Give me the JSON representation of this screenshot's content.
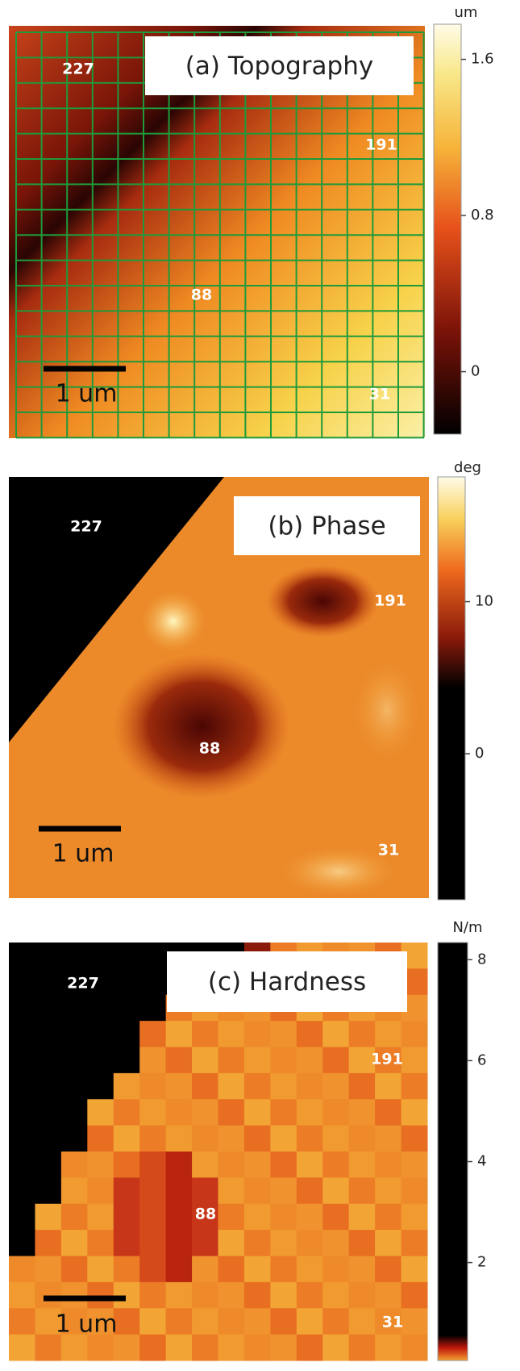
{
  "panels": [
    {
      "title": "(a) Topography",
      "unit": "um",
      "colorbar": {
        "ylim": [
          -0.32,
          1.78
        ],
        "yticks": [
          0,
          0.8,
          1.6
        ]
      },
      "labels": [
        "227",
        "191",
        "88",
        "31"
      ],
      "scale_bar": "1 um"
    },
    {
      "title": "(b) Phase",
      "unit": "deg",
      "colorbar": {
        "ylim": [
          -9.6,
          18.2
        ],
        "yticks": [
          0,
          10
        ]
      },
      "labels": [
        "227",
        "191",
        "88",
        "31"
      ],
      "scale_bar": "1 um"
    },
    {
      "title": "(c) Hardness",
      "unit": "N/m",
      "colorbar": {
        "ylim": [
          0.06,
          8.34
        ],
        "yticks": [
          2,
          4,
          6,
          8
        ]
      },
      "labels": [
        "227",
        "191",
        "88",
        "31"
      ],
      "scale_bar": "1 um"
    }
  ]
}
